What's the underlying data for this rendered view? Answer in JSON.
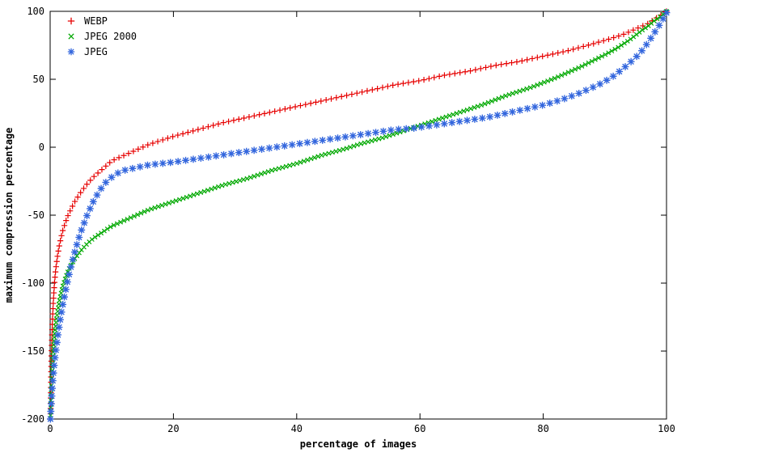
{
  "chart_data": {
    "type": "scatter",
    "title": "",
    "xlabel": "percentage of images",
    "ylabel": "maximum compression percentage",
    "xlim": [
      0,
      100
    ],
    "ylim": [
      -200,
      100
    ],
    "xticks": [
      0,
      20,
      40,
      60,
      80,
      100
    ],
    "yticks": [
      -200,
      -150,
      -100,
      -50,
      0,
      50,
      100
    ],
    "grid": false,
    "legend_position": "top-left-inside",
    "axis_color": "#000000",
    "series": [
      {
        "name": "WEBP",
        "marker": "plus",
        "color": "#e60000",
        "points": [
          [
            0.05,
            -200
          ],
          [
            0.1,
            -185
          ],
          [
            0.15,
            -168
          ],
          [
            0.2,
            -155
          ],
          [
            0.3,
            -138
          ],
          [
            0.4,
            -125
          ],
          [
            0.5,
            -115
          ],
          [
            0.7,
            -100
          ],
          [
            0.9,
            -90
          ],
          [
            1.2,
            -80
          ],
          [
            1.5,
            -72
          ],
          [
            2,
            -62
          ],
          [
            2.5,
            -55
          ],
          [
            3,
            -49
          ],
          [
            4,
            -40
          ],
          [
            5,
            -33
          ],
          [
            6,
            -27
          ],
          [
            7,
            -22
          ],
          [
            8,
            -18
          ],
          [
            9,
            -14
          ],
          [
            10,
            -10
          ],
          [
            12,
            -6
          ],
          [
            14,
            -2
          ],
          [
            16,
            2
          ],
          [
            18,
            5
          ],
          [
            20,
            8
          ],
          [
            24,
            13
          ],
          [
            28,
            18
          ],
          [
            32,
            22
          ],
          [
            36,
            26
          ],
          [
            40,
            30
          ],
          [
            44,
            34
          ],
          [
            48,
            38
          ],
          [
            52,
            42
          ],
          [
            56,
            46
          ],
          [
            60,
            49
          ],
          [
            64,
            53
          ],
          [
            68,
            56
          ],
          [
            72,
            60
          ],
          [
            76,
            63
          ],
          [
            80,
            67
          ],
          [
            84,
            71
          ],
          [
            88,
            76
          ],
          [
            91,
            80
          ],
          [
            93,
            83
          ],
          [
            95,
            87
          ],
          [
            97,
            91
          ],
          [
            98,
            94
          ],
          [
            99,
            97
          ],
          [
            100,
            100
          ]
        ]
      },
      {
        "name": "JPEG 2000",
        "marker": "cross",
        "color": "#00a800",
        "points": [
          [
            0.05,
            -200
          ],
          [
            0.1,
            -190
          ],
          [
            0.2,
            -175
          ],
          [
            0.3,
            -165
          ],
          [
            0.5,
            -150
          ],
          [
            0.7,
            -138
          ],
          [
            1,
            -127
          ],
          [
            1.5,
            -113
          ],
          [
            2,
            -103
          ],
          [
            2.5,
            -96
          ],
          [
            3,
            -90
          ],
          [
            4,
            -82
          ],
          [
            5,
            -76
          ],
          [
            6,
            -71
          ],
          [
            7,
            -67
          ],
          [
            8,
            -64
          ],
          [
            10,
            -58
          ],
          [
            12,
            -54
          ],
          [
            14,
            -50
          ],
          [
            16,
            -46
          ],
          [
            18,
            -43
          ],
          [
            20,
            -40
          ],
          [
            24,
            -34
          ],
          [
            28,
            -28
          ],
          [
            32,
            -23
          ],
          [
            36,
            -17
          ],
          [
            40,
            -12
          ],
          [
            44,
            -6
          ],
          [
            48,
            -1
          ],
          [
            50,
            2
          ],
          [
            54,
            7
          ],
          [
            58,
            13
          ],
          [
            62,
            19
          ],
          [
            66,
            25
          ],
          [
            70,
            31
          ],
          [
            74,
            38
          ],
          [
            78,
            44
          ],
          [
            82,
            51
          ],
          [
            86,
            59
          ],
          [
            90,
            68
          ],
          [
            92,
            73
          ],
          [
            94,
            79
          ],
          [
            96,
            86
          ],
          [
            97,
            89
          ],
          [
            98,
            93
          ],
          [
            99,
            96
          ],
          [
            100,
            100
          ]
        ]
      },
      {
        "name": "JPEG",
        "marker": "asterisk",
        "color": "#3366dd",
        "points": [
          [
            0.05,
            -200
          ],
          [
            0.1,
            -195
          ],
          [
            0.2,
            -188
          ],
          [
            0.3,
            -180
          ],
          [
            0.5,
            -168
          ],
          [
            0.7,
            -158
          ],
          [
            1,
            -147
          ],
          [
            1.3,
            -137
          ],
          [
            1.6,
            -128
          ],
          [
            2,
            -117
          ],
          [
            2.4,
            -108
          ],
          [
            2.8,
            -99
          ],
          [
            3.2,
            -91
          ],
          [
            3.6,
            -84
          ],
          [
            4,
            -77
          ],
          [
            4.5,
            -69
          ],
          [
            5,
            -62
          ],
          [
            5.5,
            -56
          ],
          [
            6,
            -50
          ],
          [
            6.5,
            -45
          ],
          [
            7,
            -40
          ],
          [
            7.5,
            -36
          ],
          [
            8,
            -32
          ],
          [
            8.5,
            -29
          ],
          [
            9,
            -26
          ],
          [
            10,
            -22
          ],
          [
            11,
            -19
          ],
          [
            12,
            -17
          ],
          [
            14,
            -15
          ],
          [
            16,
            -13
          ],
          [
            18,
            -12
          ],
          [
            20,
            -11
          ],
          [
            23,
            -9
          ],
          [
            26,
            -7
          ],
          [
            29,
            -5
          ],
          [
            32,
            -3
          ],
          [
            35,
            -1
          ],
          [
            38,
            1
          ],
          [
            41,
            3
          ],
          [
            44,
            5
          ],
          [
            47,
            7
          ],
          [
            50,
            9
          ],
          [
            53,
            11
          ],
          [
            56,
            13
          ],
          [
            59,
            14
          ],
          [
            62,
            16
          ],
          [
            65,
            18
          ],
          [
            68,
            20
          ],
          [
            71,
            22
          ],
          [
            74,
            25
          ],
          [
            77,
            28
          ],
          [
            80,
            31
          ],
          [
            83,
            35
          ],
          [
            86,
            40
          ],
          [
            89,
            46
          ],
          [
            91,
            51
          ],
          [
            93,
            58
          ],
          [
            95,
            66
          ],
          [
            96,
            71
          ],
          [
            97,
            77
          ],
          [
            98,
            84
          ],
          [
            99,
            91
          ],
          [
            100,
            99
          ]
        ]
      }
    ]
  }
}
